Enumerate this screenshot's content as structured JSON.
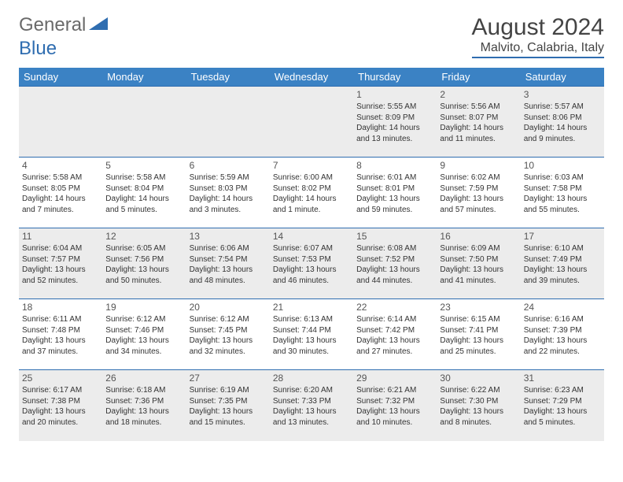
{
  "logo": {
    "general": "General",
    "blue": "Blue"
  },
  "title": "August 2024",
  "location": "Malvito, Calabria, Italy",
  "colors": {
    "header_bg": "#3b82c4",
    "header_text": "#ffffff",
    "rule": "#2f6db0",
    "alt_row_bg": "#ececec",
    "text": "#333333"
  },
  "weekdays": [
    "Sunday",
    "Monday",
    "Tuesday",
    "Wednesday",
    "Thursday",
    "Friday",
    "Saturday"
  ],
  "weeks": [
    [
      null,
      null,
      null,
      null,
      {
        "n": "1",
        "sr": "Sunrise: 5:55 AM",
        "ss": "Sunset: 8:09 PM",
        "d1": "Daylight: 14 hours",
        "d2": "and 13 minutes."
      },
      {
        "n": "2",
        "sr": "Sunrise: 5:56 AM",
        "ss": "Sunset: 8:07 PM",
        "d1": "Daylight: 14 hours",
        "d2": "and 11 minutes."
      },
      {
        "n": "3",
        "sr": "Sunrise: 5:57 AM",
        "ss": "Sunset: 8:06 PM",
        "d1": "Daylight: 14 hours",
        "d2": "and 9 minutes."
      }
    ],
    [
      {
        "n": "4",
        "sr": "Sunrise: 5:58 AM",
        "ss": "Sunset: 8:05 PM",
        "d1": "Daylight: 14 hours",
        "d2": "and 7 minutes."
      },
      {
        "n": "5",
        "sr": "Sunrise: 5:58 AM",
        "ss": "Sunset: 8:04 PM",
        "d1": "Daylight: 14 hours",
        "d2": "and 5 minutes."
      },
      {
        "n": "6",
        "sr": "Sunrise: 5:59 AM",
        "ss": "Sunset: 8:03 PM",
        "d1": "Daylight: 14 hours",
        "d2": "and 3 minutes."
      },
      {
        "n": "7",
        "sr": "Sunrise: 6:00 AM",
        "ss": "Sunset: 8:02 PM",
        "d1": "Daylight: 14 hours",
        "d2": "and 1 minute."
      },
      {
        "n": "8",
        "sr": "Sunrise: 6:01 AM",
        "ss": "Sunset: 8:01 PM",
        "d1": "Daylight: 13 hours",
        "d2": "and 59 minutes."
      },
      {
        "n": "9",
        "sr": "Sunrise: 6:02 AM",
        "ss": "Sunset: 7:59 PM",
        "d1": "Daylight: 13 hours",
        "d2": "and 57 minutes."
      },
      {
        "n": "10",
        "sr": "Sunrise: 6:03 AM",
        "ss": "Sunset: 7:58 PM",
        "d1": "Daylight: 13 hours",
        "d2": "and 55 minutes."
      }
    ],
    [
      {
        "n": "11",
        "sr": "Sunrise: 6:04 AM",
        "ss": "Sunset: 7:57 PM",
        "d1": "Daylight: 13 hours",
        "d2": "and 52 minutes."
      },
      {
        "n": "12",
        "sr": "Sunrise: 6:05 AM",
        "ss": "Sunset: 7:56 PM",
        "d1": "Daylight: 13 hours",
        "d2": "and 50 minutes."
      },
      {
        "n": "13",
        "sr": "Sunrise: 6:06 AM",
        "ss": "Sunset: 7:54 PM",
        "d1": "Daylight: 13 hours",
        "d2": "and 48 minutes."
      },
      {
        "n": "14",
        "sr": "Sunrise: 6:07 AM",
        "ss": "Sunset: 7:53 PM",
        "d1": "Daylight: 13 hours",
        "d2": "and 46 minutes."
      },
      {
        "n": "15",
        "sr": "Sunrise: 6:08 AM",
        "ss": "Sunset: 7:52 PM",
        "d1": "Daylight: 13 hours",
        "d2": "and 44 minutes."
      },
      {
        "n": "16",
        "sr": "Sunrise: 6:09 AM",
        "ss": "Sunset: 7:50 PM",
        "d1": "Daylight: 13 hours",
        "d2": "and 41 minutes."
      },
      {
        "n": "17",
        "sr": "Sunrise: 6:10 AM",
        "ss": "Sunset: 7:49 PM",
        "d1": "Daylight: 13 hours",
        "d2": "and 39 minutes."
      }
    ],
    [
      {
        "n": "18",
        "sr": "Sunrise: 6:11 AM",
        "ss": "Sunset: 7:48 PM",
        "d1": "Daylight: 13 hours",
        "d2": "and 37 minutes."
      },
      {
        "n": "19",
        "sr": "Sunrise: 6:12 AM",
        "ss": "Sunset: 7:46 PM",
        "d1": "Daylight: 13 hours",
        "d2": "and 34 minutes."
      },
      {
        "n": "20",
        "sr": "Sunrise: 6:12 AM",
        "ss": "Sunset: 7:45 PM",
        "d1": "Daylight: 13 hours",
        "d2": "and 32 minutes."
      },
      {
        "n": "21",
        "sr": "Sunrise: 6:13 AM",
        "ss": "Sunset: 7:44 PM",
        "d1": "Daylight: 13 hours",
        "d2": "and 30 minutes."
      },
      {
        "n": "22",
        "sr": "Sunrise: 6:14 AM",
        "ss": "Sunset: 7:42 PM",
        "d1": "Daylight: 13 hours",
        "d2": "and 27 minutes."
      },
      {
        "n": "23",
        "sr": "Sunrise: 6:15 AM",
        "ss": "Sunset: 7:41 PM",
        "d1": "Daylight: 13 hours",
        "d2": "and 25 minutes."
      },
      {
        "n": "24",
        "sr": "Sunrise: 6:16 AM",
        "ss": "Sunset: 7:39 PM",
        "d1": "Daylight: 13 hours",
        "d2": "and 22 minutes."
      }
    ],
    [
      {
        "n": "25",
        "sr": "Sunrise: 6:17 AM",
        "ss": "Sunset: 7:38 PM",
        "d1": "Daylight: 13 hours",
        "d2": "and 20 minutes."
      },
      {
        "n": "26",
        "sr": "Sunrise: 6:18 AM",
        "ss": "Sunset: 7:36 PM",
        "d1": "Daylight: 13 hours",
        "d2": "and 18 minutes."
      },
      {
        "n": "27",
        "sr": "Sunrise: 6:19 AM",
        "ss": "Sunset: 7:35 PM",
        "d1": "Daylight: 13 hours",
        "d2": "and 15 minutes."
      },
      {
        "n": "28",
        "sr": "Sunrise: 6:20 AM",
        "ss": "Sunset: 7:33 PM",
        "d1": "Daylight: 13 hours",
        "d2": "and 13 minutes."
      },
      {
        "n": "29",
        "sr": "Sunrise: 6:21 AM",
        "ss": "Sunset: 7:32 PM",
        "d1": "Daylight: 13 hours",
        "d2": "and 10 minutes."
      },
      {
        "n": "30",
        "sr": "Sunrise: 6:22 AM",
        "ss": "Sunset: 7:30 PM",
        "d1": "Daylight: 13 hours",
        "d2": "and 8 minutes."
      },
      {
        "n": "31",
        "sr": "Sunrise: 6:23 AM",
        "ss": "Sunset: 7:29 PM",
        "d1": "Daylight: 13 hours",
        "d2": "and 5 minutes."
      }
    ]
  ]
}
